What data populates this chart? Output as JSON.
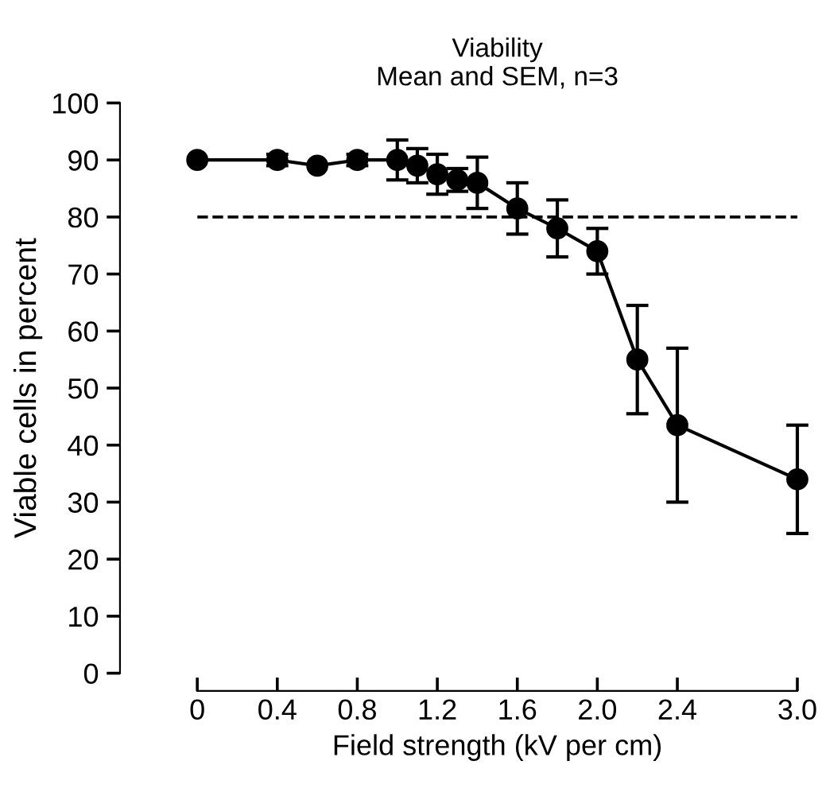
{
  "chart_data": {
    "type": "line",
    "title": "Viability",
    "subtitle": "Mean and SEM, n=3",
    "xlabel": "Field strength (kV per cm)",
    "ylabel": "Viable cells in percent",
    "x": [
      0,
      0.4,
      0.6,
      0.8,
      1.0,
      1.1,
      1.2,
      1.3,
      1.4,
      1.6,
      1.8,
      2.0,
      2.2,
      2.4,
      3.0
    ],
    "series": [
      {
        "color": "#000000",
        "values": [
          90,
          90,
          89,
          90,
          90,
          89,
          87.5,
          86.5,
          86,
          81.5,
          78,
          74,
          55,
          43.5,
          34
        ],
        "errors": [
          null,
          1,
          null,
          1,
          3.5,
          3,
          3.5,
          2,
          4.5,
          4.5,
          5,
          4,
          9.5,
          13.5,
          9.5
        ]
      }
    ],
    "xlim": [
      0,
      3.0
    ],
    "xticks": [
      0,
      0.4,
      0.8,
      1.2,
      1.6,
      {
        "value": 2.0,
        "label": "2.0"
      },
      2.4,
      {
        "value": 3.0,
        "label": "3.0"
      }
    ],
    "ylim": [
      0,
      100
    ],
    "yticks": [
      0,
      10,
      20,
      30,
      40,
      50,
      60,
      70,
      80,
      90,
      100
    ],
    "ref_lines": [
      {
        "axis": "y",
        "value": 80,
        "line_style": "dashed",
        "color": "#000000"
      }
    ],
    "marker": "circle",
    "line_style": "solid",
    "grid": false,
    "legend": false
  }
}
